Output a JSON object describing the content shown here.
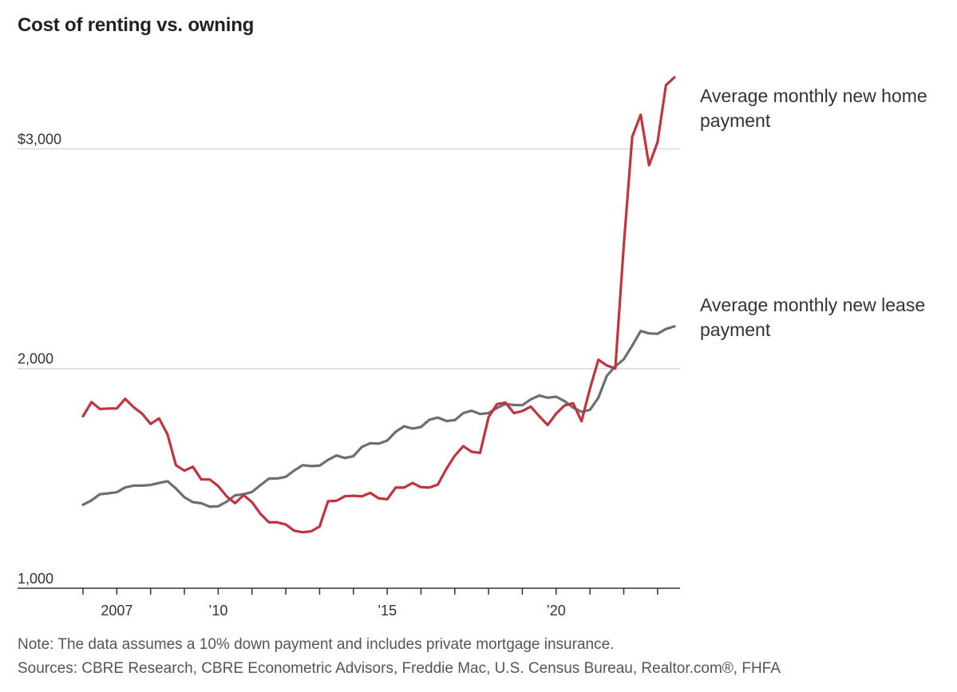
{
  "title": "Cost of renting vs. owning",
  "note": "Note: The data assumes a 10% down payment and includes private mortgage insurance.",
  "sources": "Sources: CBRE Research, CBRE Econometric Advisors, Freddie Mac, U.S. Census Bureau, Realtor.com®, FHFA",
  "colors": {
    "home": "#c1343c",
    "lease": "#6e6e6e",
    "grid": "#d9d9d9",
    "axis": "#333333"
  },
  "chart_data": {
    "type": "line",
    "title": "Cost of renting vs. owning",
    "xlabel": "",
    "ylabel": "",
    "xlim": [
      2005.92,
      2023.76
    ],
    "ylim": [
      1000,
      3325
    ],
    "grid": true,
    "y_ticks": [
      {
        "value": 1000,
        "label": "1,000"
      },
      {
        "value": 2000,
        "label": "2,000"
      },
      {
        "value": 3000,
        "label": "$3,000"
      }
    ],
    "x_ticks": [
      {
        "value": 2007,
        "label": "2007"
      },
      {
        "value": 2010,
        "label": "’10"
      },
      {
        "value": 2015,
        "label": "’15"
      },
      {
        "value": 2020,
        "label": "’20"
      }
    ],
    "x_minor_ticks": [
      2006,
      2007,
      2008,
      2009,
      2010,
      2011,
      2012,
      2013,
      2014,
      2015,
      2016,
      2017,
      2018,
      2019,
      2020,
      2021,
      2022,
      2023
    ],
    "series": [
      {
        "name": "Average monthly new home payment",
        "label_lines": [
          "Average monthly new home",
          "payment"
        ],
        "color": "#c1343c",
        "points": [
          [
            2006.0,
            1783
          ],
          [
            2006.25,
            1847
          ],
          [
            2006.5,
            1816
          ],
          [
            2006.75,
            1818
          ],
          [
            2007.0,
            1818
          ],
          [
            2007.25,
            1862
          ],
          [
            2007.5,
            1824
          ],
          [
            2007.75,
            1794
          ],
          [
            2008.0,
            1748
          ],
          [
            2008.25,
            1773
          ],
          [
            2008.5,
            1700
          ],
          [
            2008.75,
            1560
          ],
          [
            2009.0,
            1535
          ],
          [
            2009.25,
            1553
          ],
          [
            2009.5,
            1495
          ],
          [
            2009.75,
            1495
          ],
          [
            2010.0,
            1465
          ],
          [
            2010.25,
            1418
          ],
          [
            2010.5,
            1387
          ],
          [
            2010.75,
            1424
          ],
          [
            2011.0,
            1392
          ],
          [
            2011.25,
            1339
          ],
          [
            2011.5,
            1300
          ],
          [
            2011.75,
            1300
          ],
          [
            2012.0,
            1290
          ],
          [
            2012.25,
            1262
          ],
          [
            2012.5,
            1255
          ],
          [
            2012.75,
            1259
          ],
          [
            2013.0,
            1281
          ],
          [
            2013.25,
            1396
          ],
          [
            2013.5,
            1398
          ],
          [
            2013.75,
            1419
          ],
          [
            2014.0,
            1421
          ],
          [
            2014.25,
            1418
          ],
          [
            2014.5,
            1434
          ],
          [
            2014.75,
            1409
          ],
          [
            2015.0,
            1405
          ],
          [
            2015.25,
            1458
          ],
          [
            2015.5,
            1458
          ],
          [
            2015.75,
            1479
          ],
          [
            2016.0,
            1460
          ],
          [
            2016.25,
            1458
          ],
          [
            2016.5,
            1472
          ],
          [
            2016.75,
            1543
          ],
          [
            2017.0,
            1603
          ],
          [
            2017.25,
            1647
          ],
          [
            2017.5,
            1621
          ],
          [
            2017.75,
            1616
          ],
          [
            2018.0,
            1778
          ],
          [
            2018.25,
            1838
          ],
          [
            2018.5,
            1845
          ],
          [
            2018.75,
            1797
          ],
          [
            2019.0,
            1807
          ],
          [
            2019.25,
            1827
          ],
          [
            2019.5,
            1783
          ],
          [
            2019.75,
            1743
          ],
          [
            2020.0,
            1795
          ],
          [
            2020.25,
            1832
          ],
          [
            2020.5,
            1842
          ],
          [
            2020.75,
            1760
          ],
          [
            2021.0,
            1908
          ],
          [
            2021.25,
            2040
          ],
          [
            2021.5,
            2014
          ],
          [
            2021.75,
            2000
          ],
          [
            2022.0,
            2560
          ],
          [
            2022.25,
            3055
          ],
          [
            2022.5,
            3155
          ],
          [
            2022.75,
            2925
          ],
          [
            2023.0,
            3030
          ],
          [
            2023.25,
            3290
          ],
          [
            2023.5,
            3325
          ]
        ]
      },
      {
        "name": "Average monthly new lease payment",
        "label_lines": [
          "Average monthly new lease",
          "payment"
        ],
        "color": "#6e6e6e",
        "points": [
          [
            2006.0,
            1380
          ],
          [
            2006.25,
            1400
          ],
          [
            2006.5,
            1428
          ],
          [
            2006.75,
            1432
          ],
          [
            2007.0,
            1437
          ],
          [
            2007.25,
            1459
          ],
          [
            2007.5,
            1467
          ],
          [
            2007.75,
            1467
          ],
          [
            2008.0,
            1470
          ],
          [
            2008.25,
            1479
          ],
          [
            2008.5,
            1487
          ],
          [
            2008.75,
            1454
          ],
          [
            2009.0,
            1414
          ],
          [
            2009.25,
            1392
          ],
          [
            2009.5,
            1387
          ],
          [
            2009.75,
            1371
          ],
          [
            2010.0,
            1373
          ],
          [
            2010.25,
            1394
          ],
          [
            2010.5,
            1423
          ],
          [
            2010.75,
            1428
          ],
          [
            2011.0,
            1438
          ],
          [
            2011.25,
            1469
          ],
          [
            2011.5,
            1499
          ],
          [
            2011.75,
            1500
          ],
          [
            2012.0,
            1507
          ],
          [
            2012.25,
            1536
          ],
          [
            2012.5,
            1560
          ],
          [
            2012.75,
            1556
          ],
          [
            2013.0,
            1558
          ],
          [
            2013.25,
            1584
          ],
          [
            2013.5,
            1604
          ],
          [
            2013.75,
            1593
          ],
          [
            2014.0,
            1601
          ],
          [
            2014.25,
            1643
          ],
          [
            2014.5,
            1660
          ],
          [
            2014.75,
            1658
          ],
          [
            2015.0,
            1672
          ],
          [
            2015.25,
            1712
          ],
          [
            2015.5,
            1737
          ],
          [
            2015.75,
            1727
          ],
          [
            2016.0,
            1734
          ],
          [
            2016.25,
            1767
          ],
          [
            2016.5,
            1777
          ],
          [
            2016.75,
            1761
          ],
          [
            2017.0,
            1765
          ],
          [
            2017.25,
            1797
          ],
          [
            2017.5,
            1808
          ],
          [
            2017.75,
            1793
          ],
          [
            2018.0,
            1797
          ],
          [
            2018.25,
            1821
          ],
          [
            2018.5,
            1838
          ],
          [
            2018.75,
            1834
          ],
          [
            2019.0,
            1833
          ],
          [
            2019.25,
            1860
          ],
          [
            2019.5,
            1877
          ],
          [
            2019.75,
            1867
          ],
          [
            2020.0,
            1872
          ],
          [
            2020.25,
            1851
          ],
          [
            2020.5,
            1822
          ],
          [
            2020.75,
            1803
          ],
          [
            2021.0,
            1812
          ],
          [
            2021.25,
            1867
          ],
          [
            2021.5,
            1967
          ],
          [
            2021.75,
            2010
          ],
          [
            2022.0,
            2042
          ],
          [
            2022.25,
            2104
          ],
          [
            2022.5,
            2171
          ],
          [
            2022.75,
            2160
          ],
          [
            2023.0,
            2158
          ],
          [
            2023.25,
            2180
          ],
          [
            2023.5,
            2192
          ]
        ]
      }
    ]
  }
}
